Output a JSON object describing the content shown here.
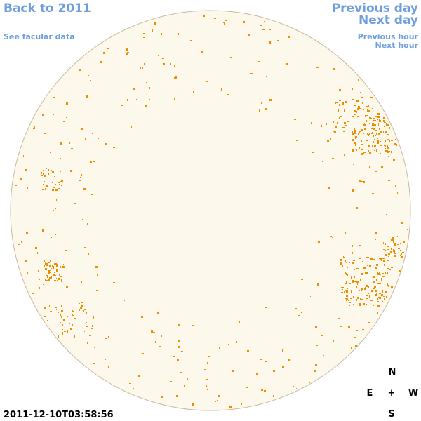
{
  "navigation": {
    "back": "Back to 2011",
    "facular": "See facular data",
    "previous_day": "Previous day",
    "next_day": "Next day",
    "previous_hour": "Previous hour",
    "next_hour": "Next hour"
  },
  "timestamp": "2011-12-10T03:58:56",
  "compass": {
    "north": "N",
    "east": "E",
    "center": "+",
    "west": "W",
    "south": "S"
  }
}
